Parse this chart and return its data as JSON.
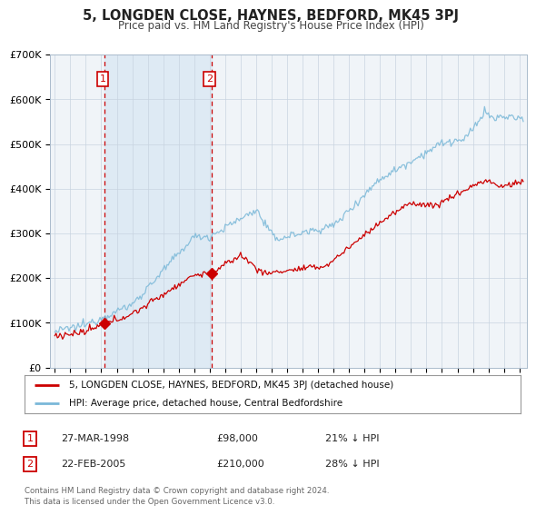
{
  "title": "5, LONGDEN CLOSE, HAYNES, BEDFORD, MK45 3PJ",
  "subtitle": "Price paid vs. HM Land Registry's House Price Index (HPI)",
  "sale1_label": "27-MAR-1998",
  "sale1_price": 98000,
  "sale1_hpi_pct": "21% ↓ HPI",
  "sale1_x": 1998.23,
  "sale2_label": "22-FEB-2005",
  "sale2_price": 210000,
  "sale2_hpi_pct": "28% ↓ HPI",
  "sale2_x": 2005.12,
  "legend_line1": "5, LONGDEN CLOSE, HAYNES, BEDFORD, MK45 3PJ (detached house)",
  "legend_line2": "HPI: Average price, detached house, Central Bedfordshire",
  "footnote": "Contains HM Land Registry data © Crown copyright and database right 2024.\nThis data is licensed under the Open Government Licence v3.0.",
  "red_color": "#cc0000",
  "blue_color": "#7ab8d8",
  "shade_color": "#deeaf4",
  "ylim": [
    0,
    700000
  ],
  "yticks": [
    0,
    100000,
    200000,
    300000,
    400000,
    500000,
    600000,
    700000
  ],
  "ytick_labels": [
    "£0",
    "£100K",
    "£200K",
    "£300K",
    "£400K",
    "£500K",
    "£600K",
    "£700K"
  ],
  "xlim_start": 1994.7,
  "xlim_end": 2025.5,
  "bg_color": "#f0f4f8"
}
